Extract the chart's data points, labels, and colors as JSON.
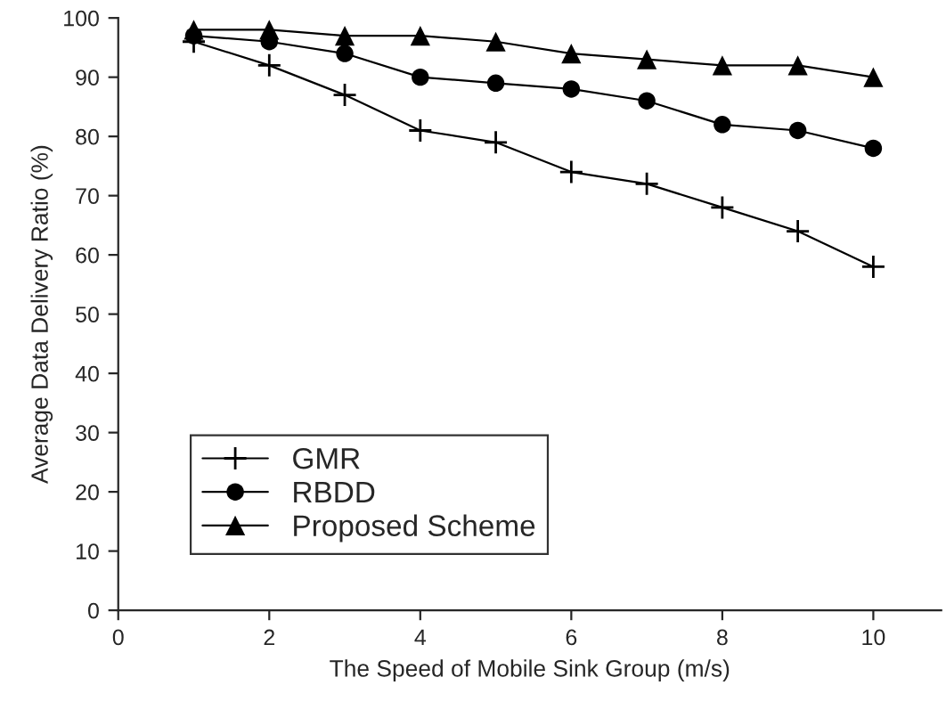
{
  "chart_data": {
    "type": "line",
    "xlabel": "The Speed of Mobile Sink Group (m/s)",
    "ylabel": "Average Data Delivery Ratio (%)",
    "x": [
      1,
      2,
      3,
      4,
      5,
      6,
      7,
      8,
      9,
      10
    ],
    "series": [
      {
        "name": "GMR",
        "color": "#000000",
        "marker": "cross",
        "values": [
          96,
          92,
          87,
          81,
          79,
          74,
          72,
          68,
          64,
          58
        ]
      },
      {
        "name": "RBDD",
        "color": "#000000",
        "marker": "circle",
        "values": [
          97,
          96,
          94,
          90,
          89,
          88,
          86,
          82,
          81,
          78
        ]
      },
      {
        "name": "Proposed Scheme",
        "color": "#000000",
        "marker": "triangle",
        "values": [
          98,
          98,
          97,
          97,
          96,
          94,
          93,
          92,
          92,
          90
        ]
      }
    ],
    "xlim": [
      0,
      10.9
    ],
    "xticks": [
      0,
      2,
      4,
      6,
      8,
      10
    ],
    "ylim": [
      0,
      100
    ],
    "yticks": [
      0,
      10,
      20,
      30,
      40,
      50,
      60,
      70,
      80,
      90,
      100
    ],
    "grid": false,
    "legend": "bottom left",
    "line_style": "solid"
  }
}
